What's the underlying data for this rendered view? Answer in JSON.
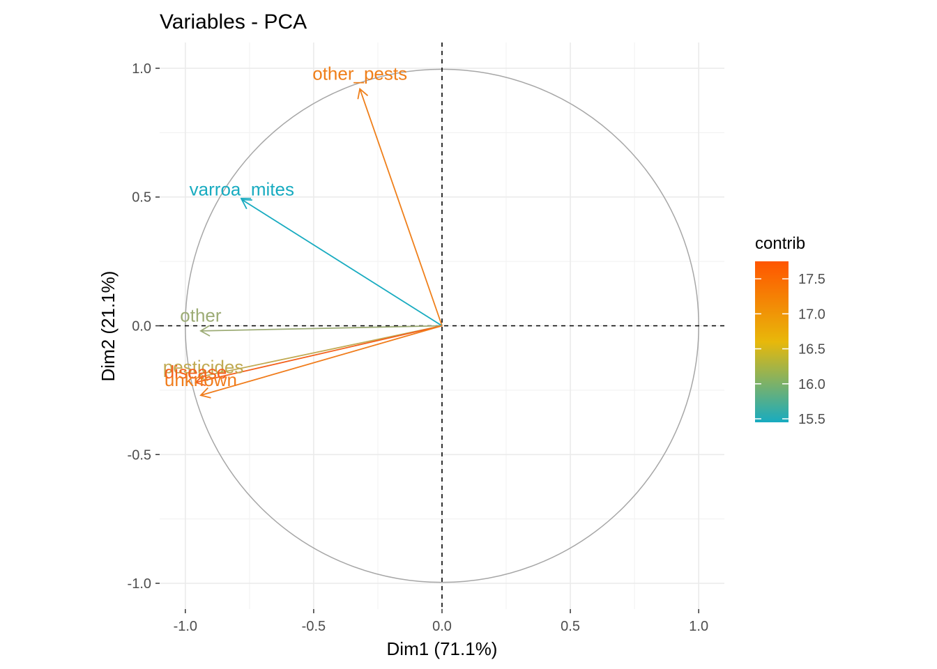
{
  "chart_data": {
    "type": "scatter",
    "subtype": "pca-variable-correlation-circle",
    "title": "Variables - PCA",
    "xlabel": "Dim1 (71.1%)",
    "ylabel": "Dim2 (21.1%)",
    "xlim": [
      -1.1,
      1.1
    ],
    "ylim": [
      -1.1,
      1.1
    ],
    "xticks": [
      -1.0,
      -0.5,
      0.0,
      0.5,
      1.0
    ],
    "xtick_labels": [
      "-1.0",
      "-0.5",
      "0.0",
      "0.5",
      "1.0"
    ],
    "yticks": [
      -1.0,
      -0.5,
      0.0,
      0.5,
      1.0
    ],
    "ytick_labels": [
      "-1.0",
      "-0.5",
      "0.0",
      "0.5",
      "1.0"
    ],
    "grid": true,
    "unit_circle": true,
    "reference_lines": [
      0,
      0
    ],
    "variables": [
      {
        "name": "other_pests",
        "x": -0.32,
        "y": 0.92,
        "contrib": 17.2,
        "color": "#ef7f1a",
        "label_x": -0.32,
        "label_y": 0.98
      },
      {
        "name": "varroa_mites",
        "x": -0.78,
        "y": 0.49,
        "contrib": 15.5,
        "color": "#18abc0",
        "label_x": -0.78,
        "label_y": 0.53
      },
      {
        "name": "other",
        "x": -0.94,
        "y": -0.02,
        "contrib": 16.0,
        "color": "#9dac76",
        "label_x": -0.94,
        "label_y": 0.04
      },
      {
        "name": "pesticides",
        "x": -0.95,
        "y": -0.2,
        "contrib": 16.4,
        "color": "#c0aa52",
        "label_x": -0.93,
        "label_y": -0.16
      },
      {
        "name": "disease",
        "x": -0.96,
        "y": -0.22,
        "contrib": 17.7,
        "color": "#f4601c",
        "label_x": -0.96,
        "label_y": -0.18
      },
      {
        "name": "unknown",
        "x": -0.94,
        "y": -0.27,
        "contrib": 17.3,
        "color": "#f07c1b",
        "label_x": -0.94,
        "label_y": -0.21
      }
    ],
    "legend": {
      "title": "contrib",
      "position": "right",
      "gradient_stops": [
        "#18abc0",
        "#e8b80a",
        "#ff5500"
      ],
      "range": [
        15.45,
        17.75
      ],
      "ticks": [
        17.5,
        17.0,
        16.5,
        16.0,
        15.5
      ],
      "tick_labels": [
        "17.5",
        "17.0",
        "16.5",
        "16.0",
        "15.5"
      ]
    }
  }
}
